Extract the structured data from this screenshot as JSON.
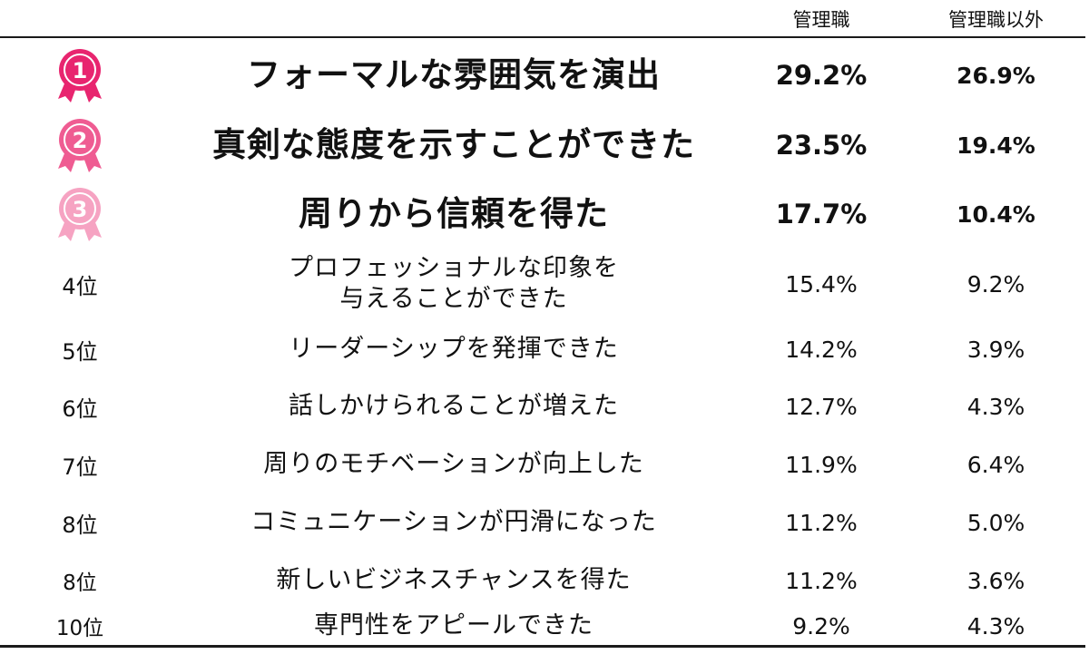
{
  "header": {
    "col_managers": "管理職",
    "col_non_managers": "管理職以外"
  },
  "colors": {
    "medal_1": "#e8256f",
    "medal_2": "#ef5c92",
    "medal_3": "#f6a3c2"
  },
  "chart_data": {
    "type": "table",
    "columns": [
      "管理職",
      "管理職以外"
    ],
    "rows": [
      {
        "rank": "1",
        "label": "フォーマルな雰囲気を演出",
        "managers": "29.2%",
        "non_managers": "26.9%"
      },
      {
        "rank": "2",
        "label": "真剣な態度を示すことができた",
        "managers": "23.5%",
        "non_managers": "19.4%"
      },
      {
        "rank": "3",
        "label": "周りから信頼を得た",
        "managers": "17.7%",
        "non_managers": "10.4%"
      },
      {
        "rank": "4位",
        "label": "プロフェッショナルな印象を",
        "label2": "与えることができた",
        "managers": "15.4%",
        "non_managers": "9.2%"
      },
      {
        "rank": "5位",
        "label": "リーダーシップを発揮できた",
        "managers": "14.2%",
        "non_managers": "3.9%"
      },
      {
        "rank": "6位",
        "label": "話しかけられることが増えた",
        "managers": "12.7%",
        "non_managers": "4.3%"
      },
      {
        "rank": "7位",
        "label": "周りのモチベーションが向上した",
        "managers": "11.9%",
        "non_managers": "6.4%"
      },
      {
        "rank": "8位",
        "label": "コミュニケーションが円滑になった",
        "managers": "11.2%",
        "non_managers": "5.0%"
      },
      {
        "rank": "8位",
        "label": "新しいビジネスチャンスを得た",
        "managers": "11.2%",
        "non_managers": "3.6%"
      },
      {
        "rank": "10位",
        "label": "専門性をアピールできた",
        "managers": "9.2%",
        "non_managers": "4.3%"
      }
    ]
  }
}
